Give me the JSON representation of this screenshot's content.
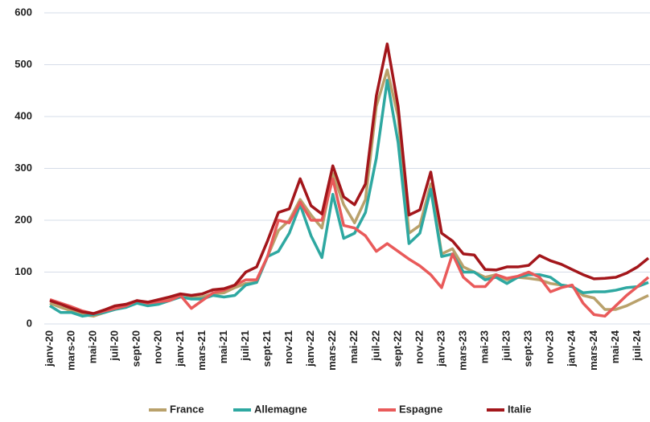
{
  "chart_data": {
    "type": "line",
    "categories": [
      "janv-20",
      null,
      "mars-20",
      null,
      "mai-20",
      null,
      "juil-20",
      null,
      "sept-20",
      null,
      "nov-20",
      null,
      "janv-21",
      null,
      "mars-21",
      null,
      "mai-21",
      null,
      "juil-21",
      null,
      "sept-21",
      null,
      "nov-21",
      null,
      "janv-22",
      null,
      "mars-22",
      null,
      "mai-22",
      null,
      "juil-22",
      null,
      "sept-22",
      null,
      "nov-22",
      null,
      "janv-23",
      null,
      "mars-23",
      null,
      "mai-23",
      null,
      "juil-23",
      null,
      "sept-23",
      null,
      "nov-23",
      null,
      "janv-24",
      null,
      "mars-24",
      null,
      "mai-24",
      null,
      "juil-24",
      null
    ],
    "series": [
      {
        "name": "France",
        "color": "#b9a16b",
        "values": [
          40,
          32,
          25,
          18,
          15,
          22,
          30,
          35,
          42,
          38,
          43,
          48,
          52,
          50,
          52,
          58,
          60,
          70,
          78,
          80,
          130,
          180,
          200,
          240,
          210,
          185,
          290,
          230,
          195,
          240,
          420,
          490,
          400,
          175,
          190,
          270,
          135,
          145,
          110,
          100,
          90,
          95,
          85,
          90,
          88,
          85,
          78,
          75,
          72,
          55,
          50,
          28,
          28,
          35,
          45,
          55
        ]
      },
      {
        "name": "Allemagne",
        "color": "#2ea8a1",
        "values": [
          35,
          22,
          22,
          15,
          18,
          22,
          28,
          32,
          40,
          35,
          38,
          45,
          52,
          48,
          48,
          55,
          52,
          55,
          75,
          80,
          130,
          140,
          175,
          230,
          170,
          128,
          250,
          165,
          175,
          215,
          320,
          470,
          350,
          155,
          175,
          260,
          130,
          135,
          100,
          100,
          85,
          90,
          78,
          90,
          95,
          95,
          90,
          75,
          72,
          60,
          62,
          62,
          65,
          70,
          72,
          80
        ]
      },
      {
        "name": "Espagne",
        "color": "#e95a5a",
        "values": [
          47,
          40,
          33,
          25,
          20,
          25,
          30,
          35,
          45,
          40,
          43,
          45,
          55,
          30,
          45,
          60,
          65,
          75,
          85,
          85,
          130,
          200,
          195,
          235,
          200,
          200,
          280,
          190,
          185,
          170,
          140,
          155,
          140,
          125,
          112,
          95,
          70,
          135,
          90,
          72,
          72,
          95,
          88,
          92,
          100,
          90,
          62,
          70,
          75,
          40,
          18,
          15,
          35,
          55,
          72,
          90
        ]
      },
      {
        "name": "Italie",
        "color": "#a3161b",
        "values": [
          45,
          38,
          30,
          23,
          20,
          27,
          35,
          38,
          45,
          42,
          47,
          52,
          58,
          55,
          58,
          66,
          68,
          75,
          100,
          110,
          160,
          215,
          222,
          280,
          228,
          212,
          305,
          245,
          230,
          270,
          440,
          540,
          420,
          210,
          220,
          293,
          175,
          160,
          135,
          133,
          105,
          104,
          110,
          110,
          113,
          132,
          122,
          115,
          105,
          95,
          87,
          88,
          90,
          98,
          110,
          127
        ]
      }
    ],
    "ylim": [
      0,
      600
    ],
    "yticks": [
      0,
      100,
      200,
      300,
      400,
      500,
      600
    ],
    "grid": true,
    "legend": "bottom"
  }
}
